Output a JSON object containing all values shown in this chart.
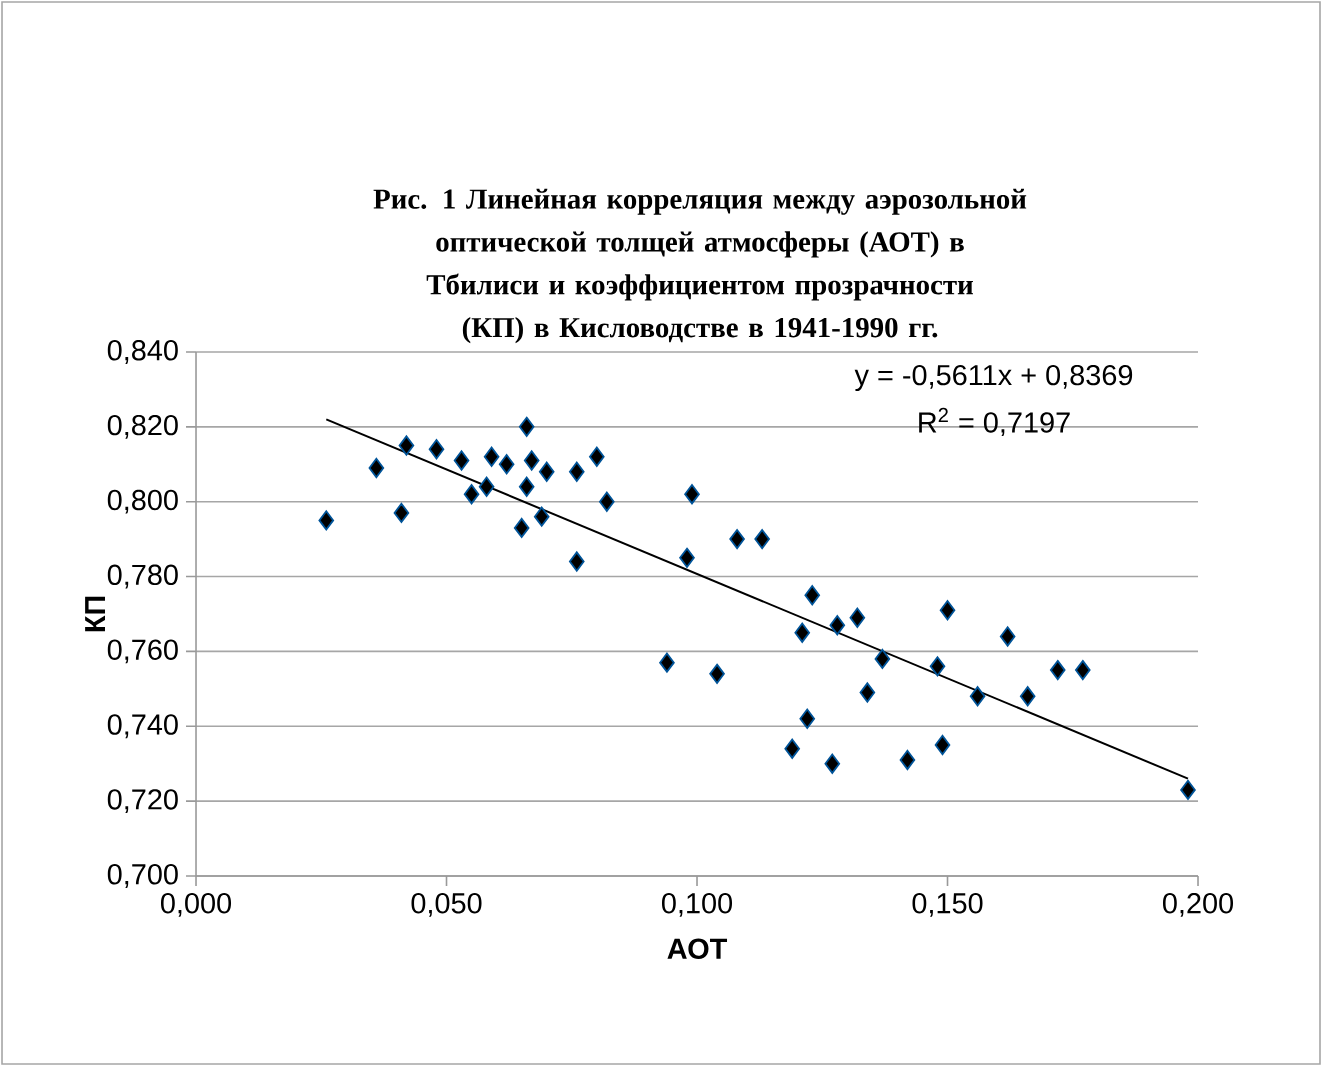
{
  "chart_data": {
    "type": "scatter",
    "title": "Рис. 1  Линейная корреляция между аэрозольной оптической толщей атмосферы (АОТ) в Тбилиси и коэффициентом прозрачности (КП) в Кисловодстве в 1941-1990 гг.",
    "xlabel": "АОТ",
    "ylabel": "КП",
    "xlim": [
      0,
      0.2
    ],
    "ylim": [
      0.7,
      0.84
    ],
    "xticks": [
      {
        "value": 0,
        "label": "0,000"
      },
      {
        "value": 0.05,
        "label": "0,050"
      },
      {
        "value": 0.1,
        "label": "0,100"
      },
      {
        "value": 0.15,
        "label": "0,150"
      },
      {
        "value": 0.2,
        "label": "0,200"
      }
    ],
    "yticks": [
      {
        "value": 0.7,
        "label": "0,700"
      },
      {
        "value": 0.72,
        "label": "0,720"
      },
      {
        "value": 0.74,
        "label": "0,740"
      },
      {
        "value": 0.76,
        "label": "0,760"
      },
      {
        "value": 0.78,
        "label": "0,780"
      },
      {
        "value": 0.8,
        "label": "0,800"
      },
      {
        "value": 0.82,
        "label": "0,820"
      },
      {
        "value": 0.84,
        "label": "0,840"
      }
    ],
    "grid": "y",
    "annotations": [
      "y = -0,5611x + 0,8369",
      "R$^{2}$ = 0,7197"
    ],
    "series": [
      {
        "marker": "diamond",
        "color": "#000000",
        "x": [
          0.026,
          0.036,
          0.041,
          0.042,
          0.048,
          0.053,
          0.055,
          0.058,
          0.059,
          0.062,
          0.065,
          0.066,
          0.066,
          0.067,
          0.069,
          0.07,
          0.076,
          0.076,
          0.08,
          0.082,
          0.094,
          0.098,
          0.099,
          0.104,
          0.108,
          0.113,
          0.119,
          0.121,
          0.122,
          0.123,
          0.127,
          0.128,
          0.132,
          0.134,
          0.137,
          0.142,
          0.148,
          0.149,
          0.15,
          0.156,
          0.162,
          0.166,
          0.172,
          0.177,
          0.198
        ],
        "values": [
          0.795,
          0.809,
          0.797,
          0.815,
          0.814,
          0.811,
          0.802,
          0.804,
          0.812,
          0.81,
          0.793,
          0.82,
          0.804,
          0.811,
          0.796,
          0.808,
          0.784,
          0.808,
          0.812,
          0.8,
          0.757,
          0.785,
          0.802,
          0.754,
          0.79,
          0.79,
          0.734,
          0.765,
          0.742,
          0.775,
          0.73,
          0.767,
          0.769,
          0.749,
          0.758,
          0.731,
          0.756,
          0.735,
          0.771,
          0.748,
          0.764,
          0.748,
          0.755,
          0.755,
          0.723
        ]
      },
      {
        "type": "line",
        "color": "#000000",
        "x": [
          0.026,
          0.198
        ],
        "values": [
          0.822,
          0.726
        ]
      }
    ]
  }
}
